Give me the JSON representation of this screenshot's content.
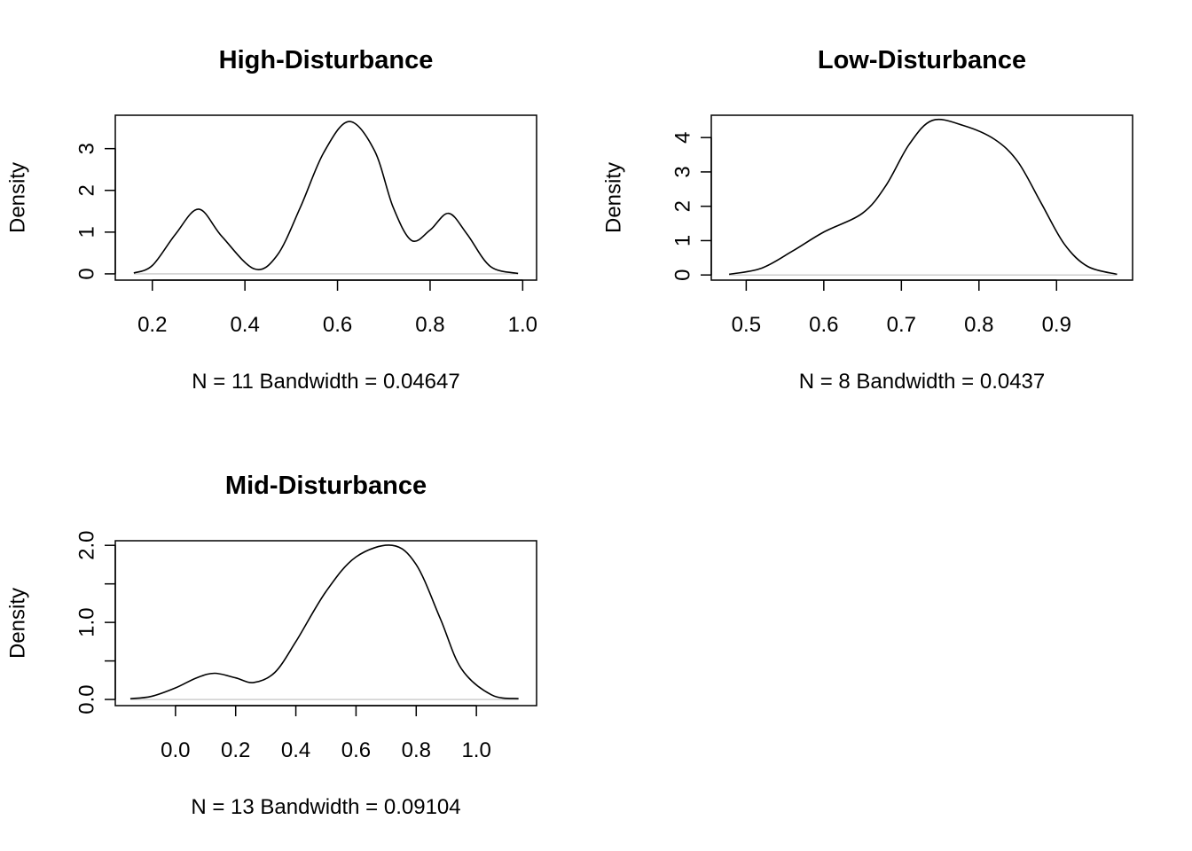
{
  "chart_data": [
    {
      "type": "line",
      "title": "High-Disturbance",
      "xlabel": "N = 11   Bandwidth = 0.04647",
      "ylabel": "Density",
      "xlim": [
        0.12,
        1.03
      ],
      "ylim": [
        -0.15,
        3.8
      ],
      "x_ticks": [
        0.2,
        0.4,
        0.6,
        0.8,
        1.0
      ],
      "x_tick_labels": [
        "0.2",
        "0.4",
        "0.6",
        "0.8",
        "1.0"
      ],
      "y_ticks": [
        0,
        1,
        2,
        3
      ],
      "y_tick_labels": [
        "0",
        "1",
        "2",
        "3"
      ],
      "x": [
        0.16,
        0.2,
        0.25,
        0.3,
        0.35,
        0.42,
        0.47,
        0.52,
        0.57,
        0.625,
        0.68,
        0.72,
        0.76,
        0.8,
        0.84,
        0.88,
        0.93,
        0.99
      ],
      "y": [
        0.02,
        0.2,
        0.95,
        1.55,
        0.9,
        0.12,
        0.45,
        1.6,
        2.9,
        3.65,
        2.95,
        1.6,
        0.8,
        1.05,
        1.45,
        0.95,
        0.18,
        0.01
      ]
    },
    {
      "type": "line",
      "title": "Low-Disturbance",
      "xlabel": "N = 8   Bandwidth = 0.0437",
      "ylabel": "Density",
      "xlim": [
        0.455,
        0.998
      ],
      "ylim": [
        -0.15,
        4.65
      ],
      "x_ticks": [
        0.5,
        0.6,
        0.7,
        0.8,
        0.9
      ],
      "x_tick_labels": [
        "0.5",
        "0.6",
        "0.7",
        "0.8",
        "0.9"
      ],
      "y_ticks": [
        0,
        1,
        2,
        3,
        4
      ],
      "y_tick_labels": [
        "0",
        "1",
        "2",
        "3",
        "4"
      ],
      "x": [
        0.478,
        0.52,
        0.56,
        0.6,
        0.65,
        0.68,
        0.71,
        0.74,
        0.78,
        0.82,
        0.85,
        0.88,
        0.91,
        0.94,
        0.978
      ],
      "y": [
        0.02,
        0.2,
        0.7,
        1.25,
        1.8,
        2.6,
        3.8,
        4.5,
        4.35,
        3.95,
        3.3,
        2.1,
        0.9,
        0.25,
        0.02
      ]
    },
    {
      "type": "line",
      "title": "Mid-Disturbance",
      "xlabel": "N = 13   Bandwidth = 0.09104",
      "ylabel": "Density",
      "xlim": [
        -0.2,
        1.2
      ],
      "ylim": [
        -0.08,
        2.06
      ],
      "x_ticks": [
        0.0,
        0.2,
        0.4,
        0.6,
        0.8,
        1.0
      ],
      "x_tick_labels": [
        "0.0",
        "0.2",
        "0.4",
        "0.6",
        "0.8",
        "1.0"
      ],
      "y_ticks": [
        0.0,
        0.5,
        1.0,
        1.5,
        2.0
      ],
      "y_tick_labels": [
        "0.0",
        "",
        "1.0",
        "",
        "2.0"
      ],
      "x": [
        -0.15,
        -0.08,
        0.0,
        0.07,
        0.13,
        0.2,
        0.26,
        0.33,
        0.4,
        0.5,
        0.6,
        0.72,
        0.8,
        0.88,
        0.95,
        1.05,
        1.14
      ],
      "y": [
        0.01,
        0.04,
        0.15,
        0.28,
        0.34,
        0.28,
        0.22,
        0.35,
        0.75,
        1.4,
        1.85,
        2.0,
        1.75,
        1.05,
        0.4,
        0.06,
        0.01
      ]
    }
  ]
}
